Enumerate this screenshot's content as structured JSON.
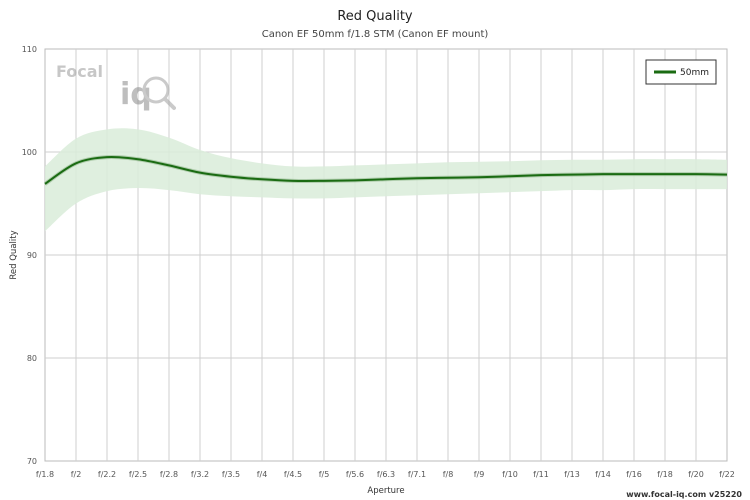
{
  "chart_data": {
    "type": "line",
    "title": "Red Quality",
    "subtitle": "Canon EF 50mm f/1.8 STM (Canon EF mount)",
    "xlabel": "Aperture",
    "ylabel": "Red Quality",
    "categories": [
      "f/1.8",
      "f/2",
      "f/2.2",
      "f/2.5",
      "f/2.8",
      "f/3.2",
      "f/3.5",
      "f/4",
      "f/4.5",
      "f/5",
      "f/5.6",
      "f/6.3",
      "f/7.1",
      "f/8",
      "f/9",
      "f/10",
      "f/11",
      "f/13",
      "f/14",
      "f/16",
      "f/18",
      "f/20",
      "f/22"
    ],
    "ylim": [
      70,
      110
    ],
    "yticks": [
      70,
      80,
      90,
      100,
      110
    ],
    "grid": true,
    "legend_position": "top-right",
    "series": [
      {
        "name": "50mm",
        "color": "#1a6b12",
        "band_color": "#d9ecd9",
        "values": [
          96.9,
          98.9,
          99.5,
          99.3,
          98.7,
          98.0,
          97.6,
          97.35,
          97.2,
          97.2,
          97.25,
          97.35,
          97.45,
          97.5,
          97.55,
          97.65,
          97.75,
          97.8,
          97.85,
          97.85,
          97.85,
          97.85,
          97.8
        ],
        "upper": [
          98.6,
          101.3,
          102.2,
          102.2,
          101.4,
          100.2,
          99.4,
          98.9,
          98.6,
          98.6,
          98.7,
          98.8,
          98.9,
          99.0,
          99.05,
          99.1,
          99.2,
          99.25,
          99.25,
          99.3,
          99.3,
          99.3,
          99.25
        ],
        "lower": [
          92.3,
          95.0,
          96.2,
          96.5,
          96.3,
          95.9,
          95.7,
          95.6,
          95.5,
          95.5,
          95.6,
          95.7,
          95.8,
          95.9,
          96.0,
          96.1,
          96.2,
          96.3,
          96.3,
          96.4,
          96.4,
          96.4,
          96.4
        ]
      }
    ]
  },
  "logo": {
    "text_top": "Focal",
    "text_bottom": "iq"
  },
  "footer": {
    "website": "www.focal-iq.com",
    "version": "v25220"
  }
}
